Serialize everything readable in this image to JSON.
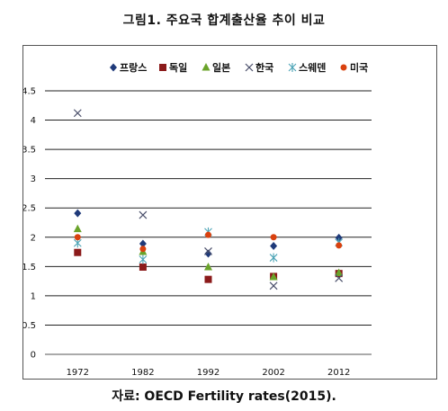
{
  "header": {
    "title": "그림1. 주요국 합계출산율 추이 비교"
  },
  "footer": {
    "source": "자료: OECD Fertility rates(2015)."
  },
  "chart_data": {
    "type": "scatter",
    "title": "그림1. 주요국 합계출산율 추이 비교",
    "xlabel": "",
    "ylabel": "",
    "categories": [
      "1972",
      "1982",
      "1992",
      "2002",
      "2012"
    ],
    "ylim": [
      0,
      4.5
    ],
    "yticks": [
      "0",
      "0.5",
      "1",
      "1.5",
      "2",
      "2.5",
      "3",
      "3.5",
      "4",
      "4.5"
    ],
    "grid": true,
    "legend_position": "top",
    "series": [
      {
        "name": "프랑스",
        "marker": "diamond",
        "color": "#1f3a7a",
        "values": [
          2.41,
          1.89,
          1.72,
          1.85,
          1.99
        ]
      },
      {
        "name": "독일",
        "marker": "square",
        "color": "#8b1a1a",
        "values": [
          1.74,
          1.49,
          1.28,
          1.33,
          1.38
        ]
      },
      {
        "name": "일본",
        "marker": "triangle",
        "color": "#6aa32a",
        "values": [
          2.14,
          1.75,
          1.49,
          1.32,
          1.39
        ]
      },
      {
        "name": "한국",
        "marker": "x",
        "color": "#4a4f6a",
        "values": [
          4.12,
          2.38,
          1.76,
          1.17,
          1.3
        ]
      },
      {
        "name": "스웨덴",
        "marker": "asterisk",
        "color": "#4aa3b5",
        "values": [
          1.9,
          1.62,
          2.09,
          1.65,
          1.91
        ]
      },
      {
        "name": "미국",
        "marker": "circle",
        "color": "#d9410f",
        "values": [
          2.0,
          1.8,
          2.04,
          2.0,
          1.86
        ]
      }
    ]
  }
}
